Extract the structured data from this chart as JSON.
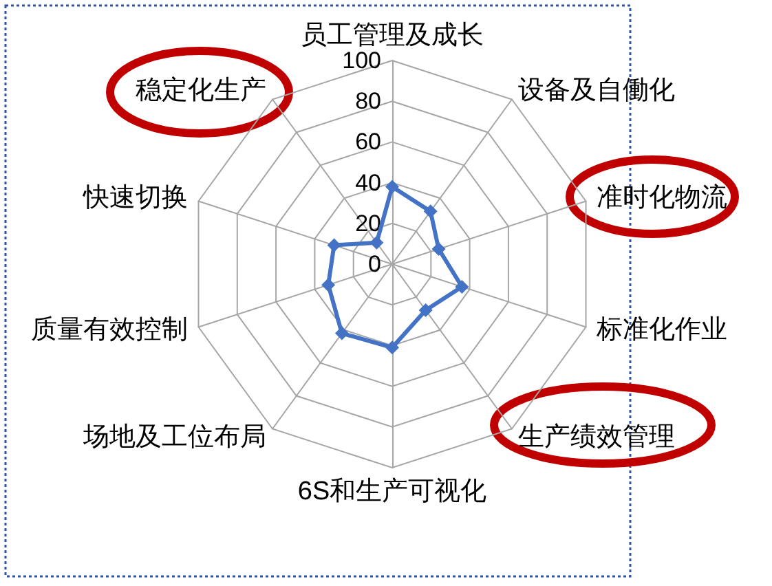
{
  "chart_data": {
    "type": "radar",
    "categories": [
      "员工管理及成长",
      "设备及自働化",
      "准时化物流",
      "标准化作业",
      "生产绩效管理",
      "6S和生产可视化",
      "场地及工位布局",
      "质量有效控制",
      "快速切换",
      "稳定化生产"
    ],
    "series": [
      {
        "color": "#4472c4",
        "values": [
          38,
          32,
          24,
          36,
          28,
          41,
          42,
          33,
          30,
          13
        ]
      }
    ],
    "ylim": [
      0,
      100
    ],
    "yticks": [
      0,
      20,
      40,
      60,
      80,
      100
    ],
    "grid": true,
    "marker": "diamond",
    "line_style": "solid"
  }
}
